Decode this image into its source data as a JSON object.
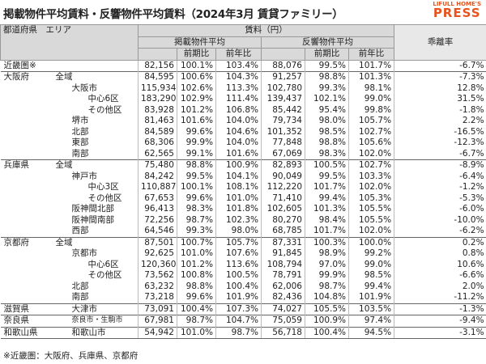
{
  "header": {
    "title": "掲載物件平均賃料・反響物件平均賃料（2024年3月 賃貸ファミリー）",
    "logo_top": "LIFULL HOME'S",
    "logo_bottom": "PRESS"
  },
  "table": {
    "header": {
      "area": "都道府県　エリア",
      "rent": "賃料（円）",
      "listed": "掲載物件平均",
      "response": "反響物件平均",
      "sub": [
        "前期比",
        "前年比",
        "前期比",
        "前年比"
      ],
      "gap": "乖離率"
    },
    "rows": [
      {
        "pref": "近畿圏※",
        "values": [
          "82,156",
          "100.1%",
          "103.4%",
          "88,076",
          "99.5%",
          "101.7%",
          "-6.7%"
        ]
      },
      {
        "pref": "大阪府",
        "area": "全域",
        "values": [
          "84,595",
          "100.6%",
          "104.3%",
          "91,257",
          "98.8%",
          "101.3%",
          "-7.3%"
        ]
      },
      {
        "city": "大阪市",
        "values": [
          "115,934",
          "102.6%",
          "113.3%",
          "102,780",
          "99.3%",
          "98.1%",
          "12.8%"
        ]
      },
      {
        "ward": "中心6区",
        "values": [
          "183,290",
          "102.9%",
          "111.4%",
          "139,437",
          "102.1%",
          "99.0%",
          "31.5%"
        ]
      },
      {
        "ward": "その他区",
        "values": [
          "83,928",
          "101.2%",
          "106.8%",
          "85,442",
          "95.4%",
          "99.8%",
          "-1.8%"
        ]
      },
      {
        "city": "堺市",
        "values": [
          "81,463",
          "101.6%",
          "104.0%",
          "79,734",
          "98.0%",
          "105.7%",
          "2.2%"
        ]
      },
      {
        "city": "北部",
        "values": [
          "84,589",
          "99.6%",
          "104.6%",
          "101,352",
          "98.5%",
          "102.7%",
          "-16.5%"
        ]
      },
      {
        "city": "東部",
        "values": [
          "68,306",
          "99.9%",
          "104.0%",
          "77,848",
          "98.8%",
          "105.6%",
          "-12.3%"
        ]
      },
      {
        "city": "南部",
        "values": [
          "62,565",
          "99.1%",
          "101.6%",
          "67,069",
          "98.3%",
          "102.0%",
          "-6.7%"
        ]
      },
      {
        "pref": "兵庫県",
        "area": "全域",
        "values": [
          "75,480",
          "98.8%",
          "100.9%",
          "82,893",
          "100.5%",
          "102.7%",
          "-8.9%"
        ]
      },
      {
        "city": "神戸市",
        "values": [
          "84,242",
          "99.5%",
          "104.1%",
          "90,049",
          "99.5%",
          "103.3%",
          "-6.4%"
        ]
      },
      {
        "ward": "中心3区",
        "values": [
          "110,887",
          "100.1%",
          "108.1%",
          "112,220",
          "101.7%",
          "102.0%",
          "-1.2%"
        ]
      },
      {
        "ward": "その他区",
        "values": [
          "67,653",
          "99.6%",
          "101.0%",
          "71,410",
          "99.4%",
          "105.3%",
          "-5.3%"
        ]
      },
      {
        "city": "阪神間北部",
        "values": [
          "96,413",
          "98.3%",
          "101.8%",
          "102,605",
          "101.3%",
          "105.5%",
          "-6.0%"
        ]
      },
      {
        "city": "阪神間南部",
        "values": [
          "72,256",
          "98.7%",
          "102.3%",
          "80,270",
          "98.4%",
          "105.5%",
          "-10.0%"
        ]
      },
      {
        "city": "西部",
        "values": [
          "64,546",
          "99.3%",
          "98.0%",
          "68,785",
          "101.7%",
          "102.0%",
          "-6.2%"
        ]
      },
      {
        "pref": "京都府",
        "area": "全域",
        "values": [
          "87,501",
          "100.7%",
          "105.7%",
          "87,331",
          "100.3%",
          "100.0%",
          "0.2%"
        ]
      },
      {
        "city": "京都市",
        "values": [
          "92,625",
          "101.0%",
          "107.6%",
          "91,845",
          "98.9%",
          "99.2%",
          "0.8%"
        ]
      },
      {
        "ward": "中心6区",
        "values": [
          "120,360",
          "101.2%",
          "113.6%",
          "108,794",
          "97.0%",
          "99.0%",
          "10.6%"
        ]
      },
      {
        "ward": "その他区",
        "values": [
          "73,562",
          "100.8%",
          "100.5%",
          "78,791",
          "99.9%",
          "98.5%",
          "-6.6%"
        ]
      },
      {
        "city": "北部",
        "values": [
          "63,232",
          "98.8%",
          "100.4%",
          "62,006",
          "98.7%",
          "99.4%",
          "2.0%"
        ]
      },
      {
        "city": "南部",
        "values": [
          "73,218",
          "99.6%",
          "101.9%",
          "82,436",
          "104.8%",
          "101.9%",
          "-11.2%"
        ]
      },
      {
        "pref": "滋賀県",
        "city": "大津市",
        "values": [
          "73,091",
          "100.4%",
          "107.3%",
          "74,027",
          "105.5%",
          "103.5%",
          "-1.3%"
        ]
      },
      {
        "pref": "奈良県",
        "city": "奈良市・生駒市",
        "values": [
          "67,981",
          "98.7%",
          "104.7%",
          "75,059",
          "100.9%",
          "97.4%",
          "-9.4%"
        ]
      },
      {
        "pref": "和歌山県",
        "city": "和歌山市",
        "values": [
          "54,942",
          "101.0%",
          "98.7%",
          "56,718",
          "100.4%",
          "94.5%",
          "-3.1%"
        ]
      }
    ]
  },
  "footnote": "※近畿圏：大阪府、兵庫県、京都府"
}
